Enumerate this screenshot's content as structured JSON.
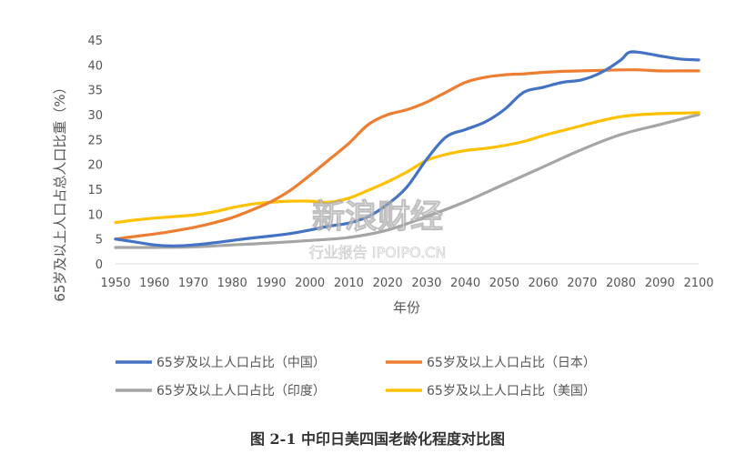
{
  "chart_data": {
    "type": "line",
    "title": "",
    "xlabel": "年份",
    "ylabel": "65岁及以上人口占总人口比重（%）",
    "x": [
      1950,
      1960,
      1970,
      1980,
      1990,
      2000,
      2010,
      2020,
      2030,
      2040,
      2050,
      2060,
      2070,
      2080,
      2090,
      2100
    ],
    "xlim": [
      1950,
      2100
    ],
    "ylim": [
      0,
      45
    ],
    "yticks": [
      0,
      5,
      10,
      15,
      20,
      25,
      30,
      35,
      40,
      45
    ],
    "grid": false,
    "legend_position": "bottom",
    "series": [
      {
        "name": "65岁及以上人口占比（中国）",
        "color": "#4472C4",
        "x": [
          1950,
          1955,
          1960,
          1965,
          1970,
          1975,
          1980,
          1985,
          1990,
          1995,
          2000,
          2005,
          2010,
          2015,
          2020,
          2025,
          2030,
          2035,
          2040,
          2045,
          2050,
          2055,
          2060,
          2065,
          2070,
          2075,
          2080,
          2082,
          2085,
          2090,
          2095,
          2100
        ],
        "values": [
          5.0,
          4.4,
          3.8,
          3.6,
          3.8,
          4.2,
          4.7,
          5.2,
          5.6,
          6.1,
          6.8,
          7.6,
          8.2,
          9.5,
          12.0,
          15.5,
          21.0,
          25.5,
          27.0,
          28.5,
          31.0,
          34.5,
          35.5,
          36.5,
          37.0,
          38.5,
          41.0,
          42.5,
          42.5,
          41.8,
          41.2,
          41.0
        ]
      },
      {
        "name": "65岁及以上人口占比（日本）",
        "color": "#ED7D31",
        "x": [
          1950,
          1955,
          1960,
          1965,
          1970,
          1975,
          1980,
          1985,
          1990,
          1995,
          2000,
          2005,
          2010,
          2015,
          2020,
          2025,
          2030,
          2035,
          2040,
          2045,
          2050,
          2055,
          2060,
          2065,
          2070,
          2075,
          2080,
          2085,
          2090,
          2095,
          2100
        ],
        "values": [
          5.0,
          5.5,
          6.0,
          6.6,
          7.3,
          8.2,
          9.3,
          10.8,
          12.5,
          14.8,
          17.8,
          21.0,
          24.2,
          28.0,
          30.0,
          31.0,
          32.5,
          34.5,
          36.5,
          37.5,
          38.0,
          38.2,
          38.5,
          38.7,
          38.8,
          38.9,
          39.0,
          39.0,
          38.8,
          38.8,
          38.8
        ]
      },
      {
        "name": "65岁及以上人口占比（印度）",
        "color": "#A5A5A5",
        "x": [
          1950,
          1960,
          1970,
          1980,
          1990,
          2000,
          2010,
          2020,
          2030,
          2040,
          2050,
          2060,
          2070,
          2080,
          2090,
          2095,
          2100
        ],
        "values": [
          3.3,
          3.3,
          3.4,
          3.8,
          4.2,
          4.7,
          5.3,
          6.8,
          9.5,
          12.5,
          16.0,
          19.5,
          23.0,
          26.0,
          28.0,
          29.0,
          30.0
        ]
      },
      {
        "name": "65岁及以上人口占比（美国）",
        "color": "#FFC000",
        "x": [
          1950,
          1955,
          1960,
          1965,
          1970,
          1975,
          1980,
          1985,
          1990,
          1995,
          2000,
          2005,
          2010,
          2015,
          2020,
          2025,
          2030,
          2035,
          2040,
          2045,
          2050,
          2055,
          2060,
          2065,
          2070,
          2075,
          2080,
          2085,
          2090,
          2095,
          2100
        ],
        "values": [
          8.3,
          8.8,
          9.2,
          9.5,
          9.8,
          10.4,
          11.3,
          12.0,
          12.4,
          12.6,
          12.6,
          12.4,
          13.2,
          14.8,
          16.5,
          18.5,
          20.8,
          22.0,
          22.8,
          23.2,
          23.8,
          24.6,
          25.8,
          26.8,
          27.8,
          28.8,
          29.6,
          30.0,
          30.2,
          30.3,
          30.4
        ]
      }
    ],
    "caption": "图 2-1 中印日美四国老龄化程度对比图"
  },
  "watermark": {
    "main": "新浪财经",
    "sub": "行业报告 IPOIPO.CN"
  }
}
